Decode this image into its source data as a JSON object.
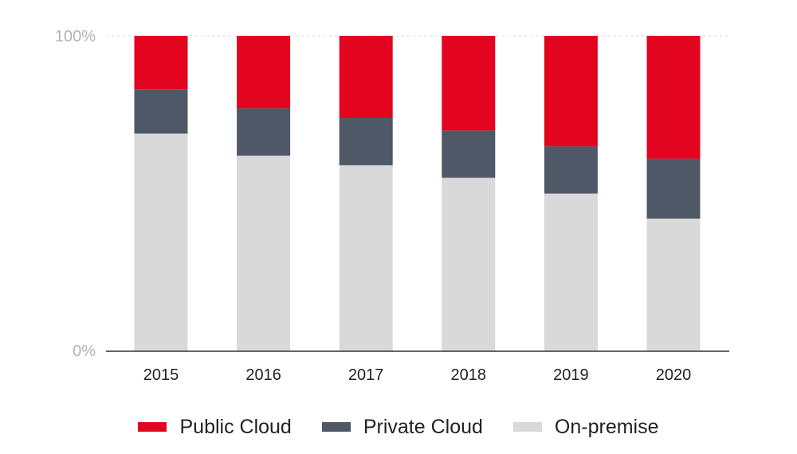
{
  "chart_data": {
    "type": "bar",
    "stacked": true,
    "categories": [
      "2015",
      "2016",
      "2017",
      "2018",
      "2019",
      "2020"
    ],
    "series": [
      {
        "name": "On-premise",
        "color": "#d9d9d9",
        "values": [
          69,
          62,
          59,
          55,
          50,
          42
        ]
      },
      {
        "name": "Private Cloud",
        "color": "#4f5867",
        "values": [
          14,
          15,
          15,
          15,
          15,
          19
        ]
      },
      {
        "name": "Public Cloud",
        "color": "#e30520",
        "values": [
          17,
          23,
          26,
          30,
          35,
          39
        ]
      }
    ],
    "yticks": [
      "0%",
      "100%"
    ],
    "ylim": [
      0,
      100
    ],
    "grid": "dashed at 100%",
    "legend_position": "bottom-center"
  },
  "legend": [
    {
      "label": "Public Cloud",
      "color": "#e30520"
    },
    {
      "label": "Private Cloud",
      "color": "#4f5867"
    },
    {
      "label": "On-premise",
      "color": "#d9d9d9"
    }
  ]
}
